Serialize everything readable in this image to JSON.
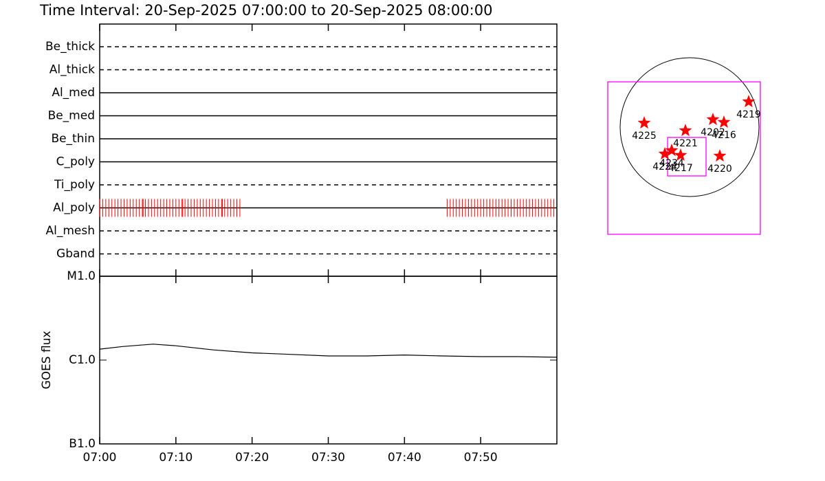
{
  "title": "Time Interval: 20-Sep-2025 07:00:00 to 20-Sep-2025 08:00:00",
  "chart_data": [
    {
      "type": "timeline",
      "categories": [
        "Be_thick",
        "Al_thick",
        "Al_med",
        "Be_med",
        "Be_thin",
        "C_poly",
        "Ti_poly",
        "Al_poly",
        "Al_mesh",
        "Gband"
      ],
      "line_styles": [
        "dashed",
        "dashed",
        "solid",
        "solid",
        "solid",
        "solid",
        "dashed",
        "solid",
        "dashed",
        "dashed"
      ],
      "xlim": [
        0,
        60
      ],
      "observation_row": 7,
      "color": "#ff0000",
      "x": [
        0,
        0.4,
        0.8,
        1.2,
        1.6,
        2,
        2.4,
        2.8,
        3.2,
        3.6,
        4,
        4.4,
        4.8,
        5.2,
        5.6,
        5.7,
        6,
        6.4,
        6.8,
        7.2,
        7.6,
        8,
        8.4,
        8.8,
        9.2,
        9.6,
        10,
        10.4,
        10.8,
        10.9,
        11.2,
        11.6,
        12,
        12.4,
        12.8,
        13.2,
        13.6,
        14,
        14.4,
        14.8,
        15.2,
        15.6,
        16,
        16.1,
        16.4,
        16.8,
        17.2,
        17.6,
        18,
        18.4,
        45.6,
        46,
        46.4,
        46.8,
        47.2,
        47.6,
        48,
        48.4,
        48.8,
        49.2,
        49.6,
        50,
        50.4,
        50.8,
        51.2,
        51.6,
        52,
        52.4,
        52.8,
        53.2,
        53.6,
        54,
        54.4,
        54.8,
        55.2,
        55.6,
        56,
        56.4,
        56.8,
        57.2,
        57.6,
        58,
        58.4,
        58.8,
        59.2,
        59.6
      ]
    },
    {
      "type": "line",
      "ylabel": "GOES flux",
      "log_scale": true,
      "color": "#000000",
      "xlim": [
        0,
        60
      ],
      "xticks": [
        {
          "value": 0,
          "label": "07:00"
        },
        {
          "value": 10,
          "label": "07:10"
        },
        {
          "value": 20,
          "label": "07:20"
        },
        {
          "value": 30,
          "label": "07:30"
        },
        {
          "value": 40,
          "label": "07:40"
        },
        {
          "value": 50,
          "label": "07:50"
        }
      ],
      "ylim": [
        1e-07,
        1e-05
      ],
      "yticks": [
        {
          "value": 1e-07,
          "label": "B1.0"
        },
        {
          "value": 1e-06,
          "label": "C1.0"
        },
        {
          "value": 1e-05,
          "label": "M1.0"
        }
      ],
      "x": [
        0,
        3,
        7,
        10,
        15,
        20,
        25,
        30,
        35,
        40,
        45,
        50,
        55,
        60
      ],
      "values": [
        1.35e-06,
        1.45e-06,
        1.55e-06,
        1.48e-06,
        1.32e-06,
        1.22e-06,
        1.17e-06,
        1.12e-06,
        1.12e-06,
        1.15e-06,
        1.12e-06,
        1.1e-06,
        1.1e-06,
        1.08e-06
      ]
    },
    {
      "type": "map",
      "disk_radius": 960,
      "marker_color": "#ff0000",
      "regions": [
        {
          "label": "4225",
          "x": -627,
          "y": 57
        },
        {
          "label": "4221",
          "x": -57,
          "y": -48
        },
        {
          "label": "4202",
          "x": 323,
          "y": 105
        },
        {
          "label": "4216",
          "x": 475,
          "y": 67
        },
        {
          "label": "4219",
          "x": 817,
          "y": 352
        },
        {
          "label": "4220",
          "x": 418,
          "y": -399
        },
        {
          "label": "4224",
          "x": -342,
          "y": -371
        },
        {
          "label": "4234",
          "x": -247,
          "y": -323
        },
        {
          "label": "4217",
          "x": -124,
          "y": -390
        }
      ],
      "fov_color": "#ff00ff",
      "fov_boxes": [
        {
          "x": -76,
          "y": -428,
          "size": 2109
        },
        {
          "x": -38,
          "y": -409,
          "size": 532
        }
      ]
    }
  ]
}
